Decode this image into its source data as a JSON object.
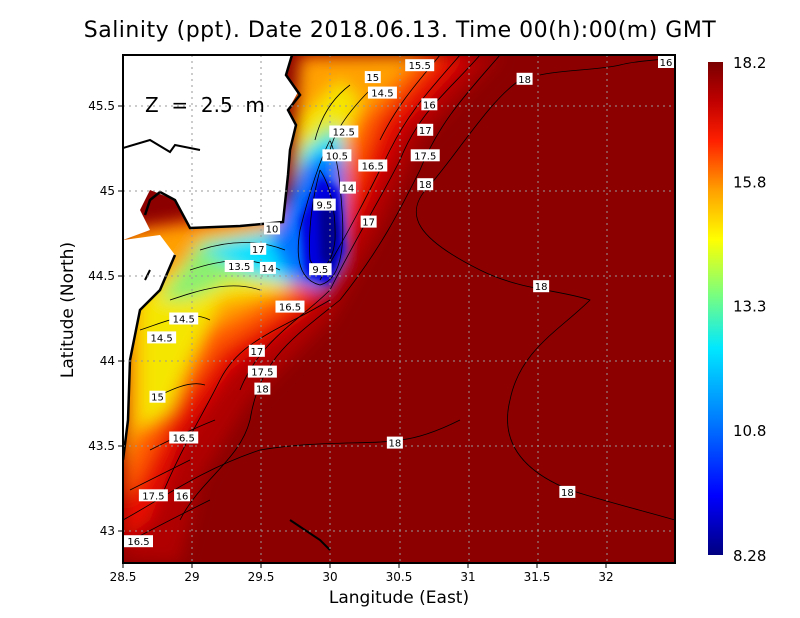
{
  "chart_data": {
    "type": "heatmap",
    "title": "Salinity (ppt). Date 2018.06.13. Time 00(h):00(m) GMT",
    "annotation": "Z  =  2.5  m",
    "xlabel": "Langitude (East)",
    "ylabel": "Latitude (North)",
    "xlim": [
      28.5,
      32.49
    ],
    "ylim": [
      42.81,
      45.8
    ],
    "x_ticks": [
      "28.5",
      "29",
      "29.5",
      "30",
      "30.5",
      "31",
      "31.5",
      "32"
    ],
    "y_ticks": [
      "43",
      "43.5",
      "44",
      "44.5",
      "45",
      "45.5"
    ],
    "grid": true,
    "colorbar": {
      "min": 8.28,
      "max": 18.2,
      "tick_labels": [
        "18.2",
        "15.8",
        "13.3",
        "10.8",
        "8.28"
      ],
      "colors": [
        "#800000",
        "#ff1a00",
        "#ff8c00",
        "#ffff00",
        "#7cff7c",
        "#00e5ff",
        "#0080ff",
        "#0000ff",
        "#000080"
      ]
    },
    "contour_labels": [
      {
        "text": "15.5",
        "lon": 30.65,
        "lat": 45.74
      },
      {
        "text": "15",
        "lon": 30.31,
        "lat": 45.67
      },
      {
        "text": "14.5",
        "lon": 30.38,
        "lat": 45.62
      },
      {
        "text": "18",
        "lon": 31.41,
        "lat": 45.66
      },
      {
        "text": "16",
        "lon": 32.45,
        "lat": 45.77
      },
      {
        "text": "16",
        "lon": 30.72,
        "lat": 45.51
      },
      {
        "text": "17",
        "lon": 30.69,
        "lat": 45.36
      },
      {
        "text": "12.5",
        "lon": 30.1,
        "lat": 45.35
      },
      {
        "text": "17.5",
        "lon": 30.69,
        "lat": 45.21
      },
      {
        "text": "10.5",
        "lon": 30.05,
        "lat": 45.21
      },
      {
        "text": "16.5",
        "lon": 30.31,
        "lat": 45.15
      },
      {
        "text": "18",
        "lon": 30.69,
        "lat": 45.04
      },
      {
        "text": "14",
        "lon": 30.13,
        "lat": 45.02
      },
      {
        "text": "9.5",
        "lon": 29.96,
        "lat": 44.92
      },
      {
        "text": "17",
        "lon": 30.28,
        "lat": 44.82
      },
      {
        "text": "10",
        "lon": 29.58,
        "lat": 44.78
      },
      {
        "text": "17",
        "lon": 29.48,
        "lat": 44.66
      },
      {
        "text": "14",
        "lon": 29.55,
        "lat": 44.63
      },
      {
        "text": "13.5",
        "lon": 29.4,
        "lat": 44.6
      },
      {
        "text": "9.5",
        "lon": 29.93,
        "lat": 44.54
      },
      {
        "text": "18",
        "lon": 31.53,
        "lat": 44.44
      },
      {
        "text": "16.5",
        "lon": 29.71,
        "lat": 44.32
      },
      {
        "text": "14.5",
        "lon": 28.94,
        "lat": 44.25
      },
      {
        "text": "14.5",
        "lon": 28.78,
        "lat": 44.18
      },
      {
        "text": "17",
        "lon": 29.47,
        "lat": 44.06
      },
      {
        "text": "17.5",
        "lon": 29.51,
        "lat": 44.02
      },
      {
        "text": "18",
        "lon": 29.51,
        "lat": 43.92
      },
      {
        "text": "15",
        "lon": 28.75,
        "lat": 43.79
      },
      {
        "text": "16.5",
        "lon": 28.94,
        "lat": 43.55
      },
      {
        "text": "18",
        "lon": 30.47,
        "lat": 43.52
      },
      {
        "text": "18",
        "lon": 31.72,
        "lat": 43.23
      },
      {
        "text": "17.5",
        "lon": 28.72,
        "lat": 43.21
      },
      {
        "text": "16",
        "lon": 28.87,
        "lat": 43.21
      },
      {
        "text": "16.5",
        "lon": 28.61,
        "lat": 42.94
      }
    ]
  }
}
